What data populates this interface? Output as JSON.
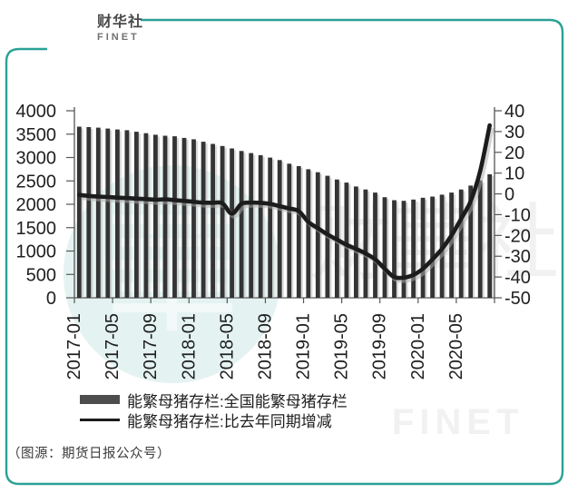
{
  "brand": {
    "logo_glyph": "華",
    "name_cn": "财华社",
    "name_en": "FINET"
  },
  "caption": "（图源：期货日报公众号）",
  "legend": [
    {
      "label": "能繁母猪存栏:全国能繁母猪存栏",
      "symbol": "thick-bar"
    },
    {
      "label": "能繁母猪存栏:比去年同期增减",
      "symbol": "thin-line"
    }
  ],
  "watermark": {
    "glyph": "華",
    "text_cn": "财華社",
    "text_en": "FINET"
  },
  "colors": {
    "frame_teal": "#2ba197",
    "logo_teal": "#1f9c8f",
    "bar": "#343434",
    "bar_shadow": "#b5b5b5",
    "line": "#1c1c1c",
    "line_shadow": "#ababab",
    "axis": "#555555",
    "tick_text": "#1f1f1f"
  },
  "chart_data": {
    "type": "bar",
    "title": "",
    "xlabel": "",
    "ylabel_left": "",
    "ylabel_right": "",
    "grid": false,
    "legend_position": "bottom",
    "x": [
      "2017-01",
      "2017-02",
      "2017-03",
      "2017-04",
      "2017-05",
      "2017-06",
      "2017-07",
      "2017-08",
      "2017-09",
      "2017-10",
      "2017-11",
      "2017-12",
      "2018-01",
      "2018-02",
      "2018-03",
      "2018-04",
      "2018-05",
      "2018-06",
      "2018-07",
      "2018-08",
      "2018-09",
      "2018-10",
      "2018-11",
      "2018-12",
      "2019-01",
      "2019-02",
      "2019-03",
      "2019-04",
      "2019-05",
      "2019-06",
      "2019-07",
      "2019-08",
      "2019-09",
      "2019-10",
      "2019-11",
      "2019-12",
      "2020-01",
      "2020-02",
      "2020-03",
      "2020-04",
      "2020-05",
      "2020-06",
      "2020-07",
      "2020-08"
    ],
    "x_tick_labels": [
      "2017-01",
      "2017-05",
      "2017-09",
      "2018-01",
      "2018-05",
      "2018-09",
      "2019-01",
      "2019-05",
      "2019-09",
      "2020-01",
      "2020-05"
    ],
    "left_axis": {
      "min": 0,
      "max": 4000,
      "step": 500,
      "ticks": [
        0,
        500,
        1000,
        1500,
        2000,
        2500,
        3000,
        3500,
        4000
      ]
    },
    "right_axis": {
      "min": -50,
      "max": 40,
      "step": 10,
      "ticks": [
        -50,
        -40,
        -30,
        -20,
        -10,
        0,
        10,
        20,
        30,
        40
      ]
    },
    "series": [
      {
        "name": "能繁母猪存栏:全国能繁母猪存栏",
        "type": "bar",
        "axis": "left",
        "values": [
          3660,
          3650,
          3638,
          3620,
          3600,
          3584,
          3552,
          3520,
          3488,
          3466,
          3454,
          3420,
          3390,
          3338,
          3292,
          3246,
          3194,
          3140,
          3096,
          3050,
          2998,
          2946,
          2868,
          2816,
          2750,
          2686,
          2610,
          2530,
          2464,
          2380,
          2316,
          2250,
          2152,
          2088,
          2074,
          2100,
          2140,
          2166,
          2205,
          2250,
          2316,
          2400,
          2510,
          2640
        ]
      },
      {
        "name": "能繁母猪存栏:比去年同期增减",
        "type": "line",
        "axis": "right",
        "values": [
          -0.5,
          -1,
          -1.3,
          -1.5,
          -1.8,
          -2,
          -2.3,
          -2.5,
          -2.8,
          -2.6,
          -3,
          -3.4,
          -3.8,
          -4.2,
          -4.3,
          -4.5,
          -9.5,
          -4.8,
          -4.2,
          -4.3,
          -4.8,
          -5.9,
          -7,
          -8.3,
          -13.5,
          -16.5,
          -19.5,
          -22,
          -24.5,
          -26.5,
          -28.7,
          -31.5,
          -36,
          -40,
          -40.3,
          -39,
          -36,
          -31.5,
          -26.5,
          -20,
          -12,
          -3.5,
          11,
          33
        ]
      }
    ]
  }
}
